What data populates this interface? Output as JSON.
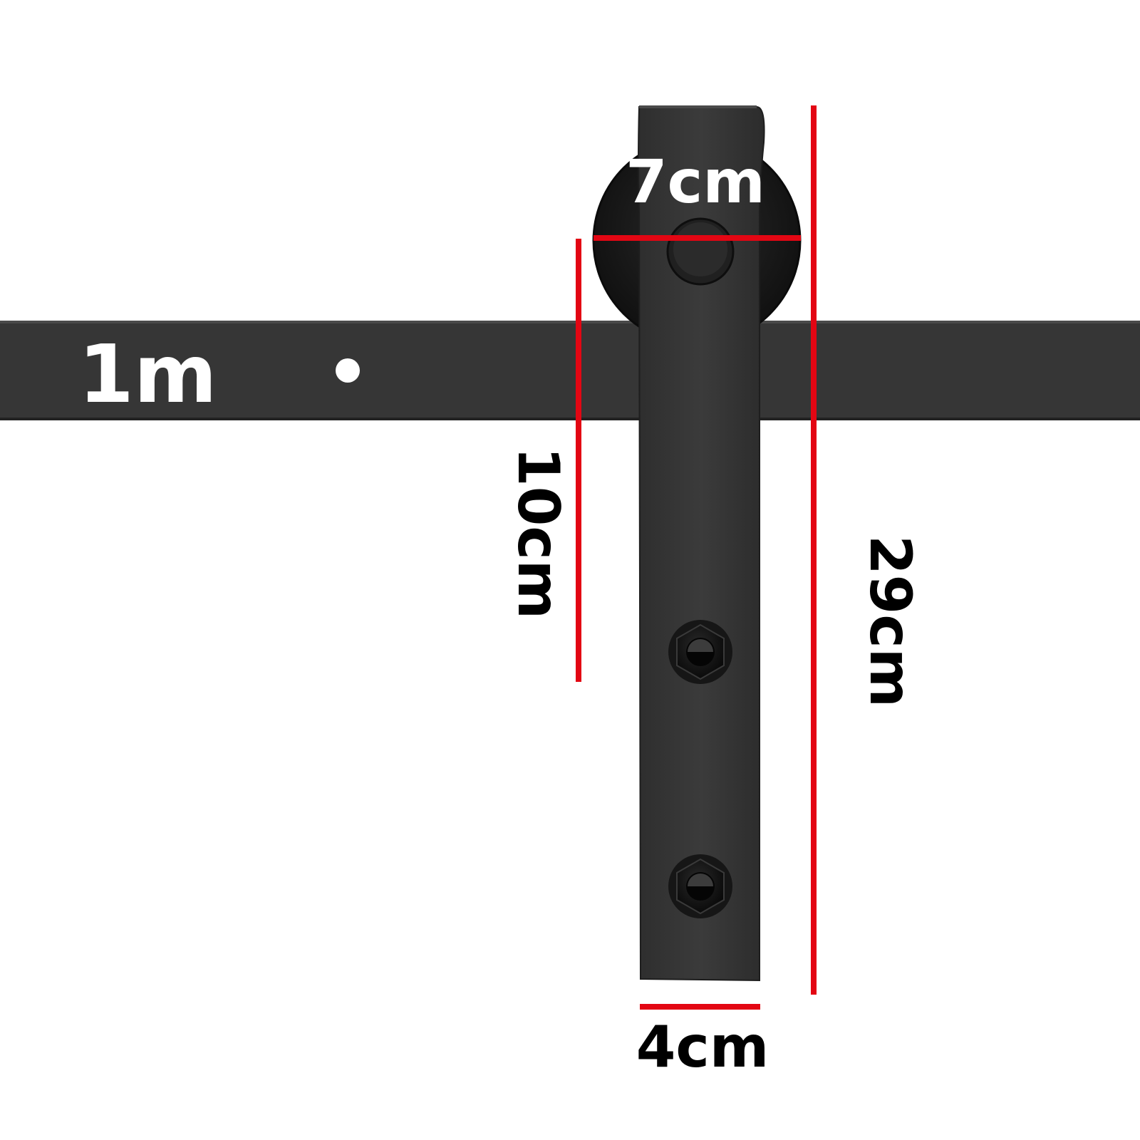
{
  "labels": {
    "rail_length": "1m",
    "wheel_diameter": "7cm",
    "drop_height": "10cm",
    "total_height": "29cm",
    "strap_width": "4cm"
  },
  "colors": {
    "background": "#ffffff",
    "rail": "#363636",
    "strap": "#3a3a3a",
    "wheel": "#1c1c1c",
    "dimension_line": "#e30613",
    "label_dark": "#000000",
    "label_light": "#ffffff"
  }
}
